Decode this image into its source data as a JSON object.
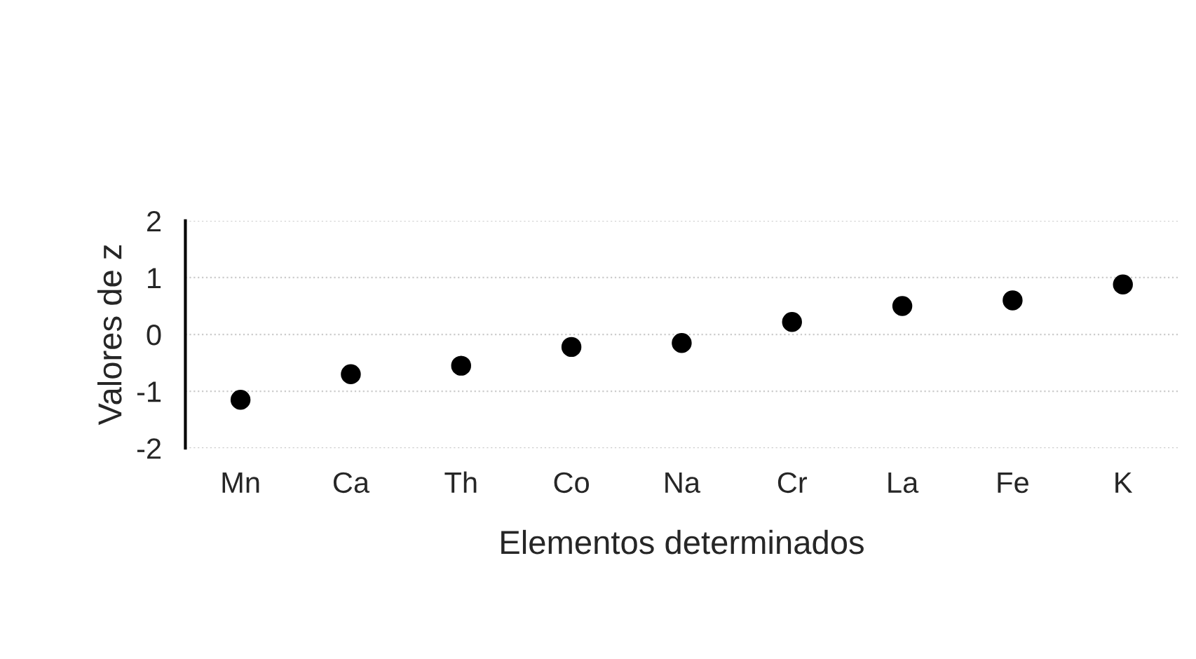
{
  "chart_data": {
    "type": "scatter",
    "xlabel": "Elementos determinados",
    "ylabel": "Valores de z",
    "categories": [
      "Mn",
      "Ca",
      "Th",
      "Co",
      "Na",
      "Cr",
      "La",
      "Fe",
      "K"
    ],
    "values": [
      -1.15,
      -0.7,
      -0.55,
      -0.22,
      -0.15,
      0.22,
      0.5,
      0.6,
      0.88
    ],
    "color": "#000000",
    "marker": "circle",
    "ylim": [
      -2,
      2
    ],
    "yticks": [
      -2,
      -1,
      0,
      1,
      2
    ],
    "grid": "y"
  }
}
